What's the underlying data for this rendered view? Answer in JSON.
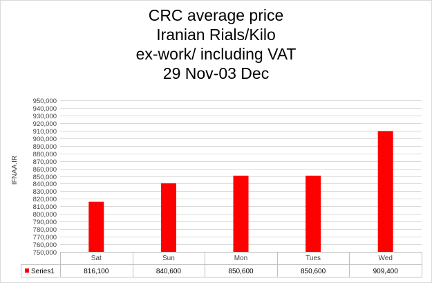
{
  "chart_data": {
    "type": "bar",
    "title_lines": [
      "CRC average price",
      "Iranian Rials/Kilo",
      "ex-work/ including VAT",
      "29 Nov-03 Dec"
    ],
    "ylabel": "IFNAA.IR",
    "categories": [
      "Sat",
      "Sun",
      "Mon",
      "Tues",
      "Wed"
    ],
    "series": [
      {
        "name": "Series1",
        "values": [
          816100,
          840600,
          850600,
          850600,
          909400
        ],
        "value_labels": [
          "816,100",
          "840,600",
          "850,600",
          "850,600",
          "909,400"
        ],
        "color": "#ff0000"
      }
    ],
    "ylim": [
      750000,
      950000
    ],
    "y_tick_step": 10000,
    "grid": true,
    "data_table": true
  }
}
